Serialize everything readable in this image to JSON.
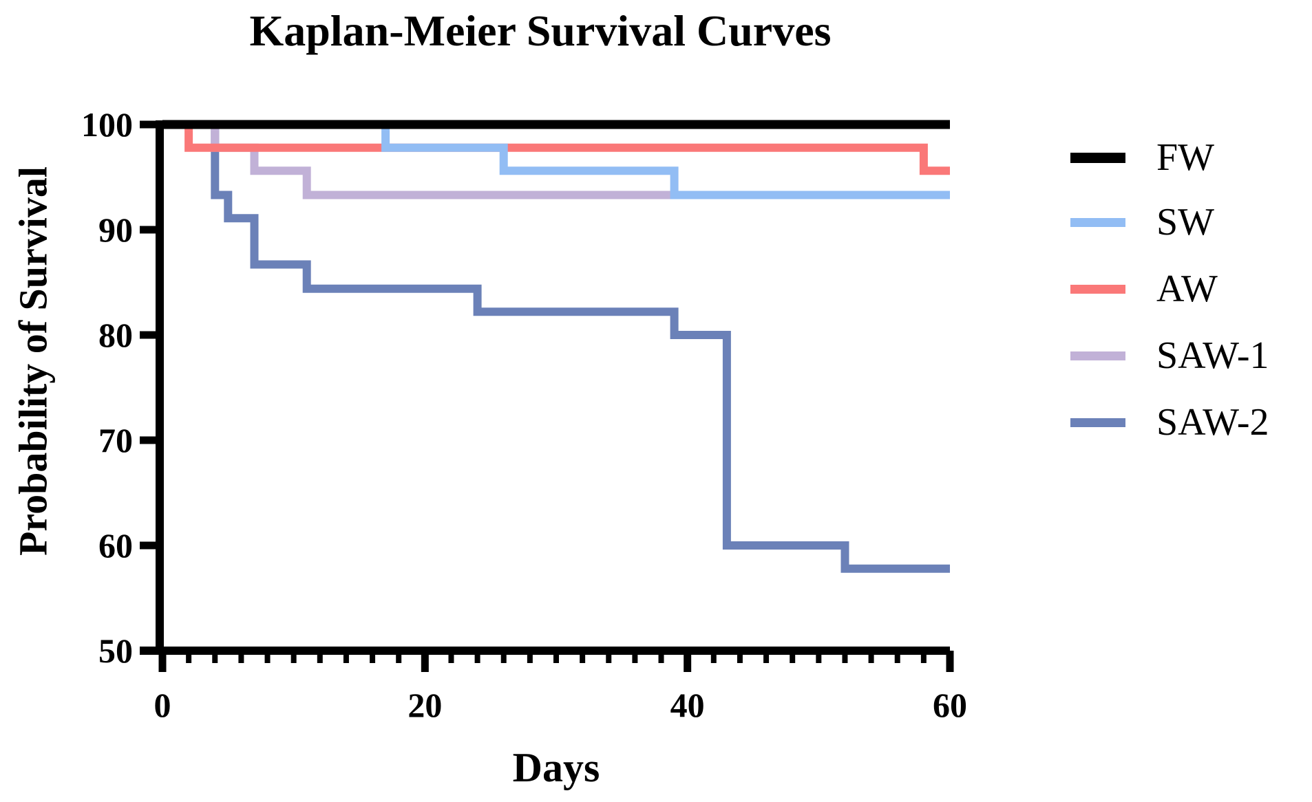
{
  "title": "Kaplan-Meier Survival Curves",
  "x_axis": {
    "label": "Days",
    "major_ticks": [
      0,
      20,
      40,
      60
    ],
    "minor_tick_step": 2,
    "range": [
      0,
      60
    ]
  },
  "y_axis": {
    "label": "Probability of Survival",
    "major_ticks": [
      100,
      90,
      80,
      70,
      60,
      50
    ],
    "range": [
      50,
      100
    ]
  },
  "legend": [
    {
      "label": "FW",
      "color": "#000000"
    },
    {
      "label": "SW",
      "color": "#92BDF4"
    },
    {
      "label": "AW",
      "color": "#FA7878"
    },
    {
      "label": "SAW-1",
      "color": "#C1B1D7"
    },
    {
      "label": "SAW-2",
      "color": "#6B81B8"
    }
  ],
  "chart_data": {
    "type": "line",
    "subtype": "kaplan-meier-step",
    "title": "Kaplan-Meier Survival Curves",
    "xlabel": "Days",
    "ylabel": "Probability of Survival",
    "xlim": [
      0,
      60
    ],
    "ylim": [
      50,
      100
    ],
    "grid": false,
    "legend_position": "right",
    "draw_order": [
      "SAW-2",
      "SAW-1",
      "AW",
      "SW",
      "FW"
    ],
    "series": [
      {
        "name": "FW",
        "color": "#000000",
        "stroke_width": 13,
        "points": [
          [
            0,
            100
          ],
          [
            60,
            100
          ]
        ]
      },
      {
        "name": "SW",
        "color": "#92BDF4",
        "stroke_width": 12,
        "points": [
          [
            0,
            100
          ],
          [
            17,
            100
          ],
          [
            17,
            97.8
          ],
          [
            26,
            97.8
          ],
          [
            26,
            95.6
          ],
          [
            39,
            95.6
          ],
          [
            39,
            93.3
          ],
          [
            60,
            93.3
          ]
        ]
      },
      {
        "name": "AW",
        "color": "#FA7878",
        "stroke_width": 12,
        "points": [
          [
            0,
            100
          ],
          [
            2,
            100
          ],
          [
            2,
            97.8
          ],
          [
            58,
            97.8
          ],
          [
            58,
            95.6
          ],
          [
            60,
            95.6
          ]
        ]
      },
      {
        "name": "SAW-1",
        "color": "#C1B1D7",
        "stroke_width": 12,
        "points": [
          [
            0,
            100
          ],
          [
            4,
            100
          ],
          [
            4,
            97.8
          ],
          [
            7,
            97.8
          ],
          [
            7,
            95.6
          ],
          [
            11,
            95.6
          ],
          [
            11,
            93.3
          ],
          [
            60,
            93.3
          ]
        ]
      },
      {
        "name": "SAW-2",
        "color": "#6B81B8",
        "stroke_width": 12,
        "points": [
          [
            0,
            100
          ],
          [
            4,
            100
          ],
          [
            4,
            93.3
          ],
          [
            5,
            93.3
          ],
          [
            5,
            91.1
          ],
          [
            7,
            91.1
          ],
          [
            7,
            86.7
          ],
          [
            11,
            86.7
          ],
          [
            11,
            84.4
          ],
          [
            24,
            84.4
          ],
          [
            24,
            82.2
          ],
          [
            39,
            82.2
          ],
          [
            39,
            80
          ],
          [
            43,
            80
          ],
          [
            43,
            60
          ],
          [
            52,
            60
          ],
          [
            52,
            57.8
          ],
          [
            60,
            57.8
          ]
        ]
      }
    ]
  }
}
